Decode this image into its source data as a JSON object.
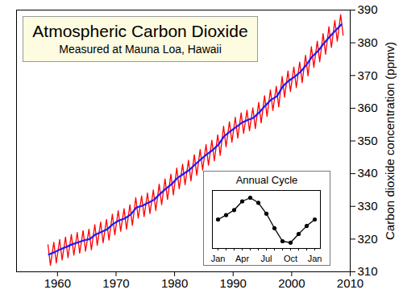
{
  "chart_data": [
    {
      "type": "line",
      "title": "Atmospheric Carbon Dioxide",
      "subtitle": "Measured at Mauna Loa, Hawaii",
      "y_label": "Carbon dioxide concentration (ppmv)",
      "xlim": [
        1953,
        2010
      ],
      "xticks": [
        1960,
        1970,
        1980,
        1990,
        2000,
        2010
      ],
      "ylim": [
        310,
        390
      ],
      "yticks": [
        310,
        320,
        330,
        340,
        350,
        360,
        370,
        380,
        390
      ],
      "grid": false,
      "series": [
        {
          "color": "#ff0000",
          "x": [
            1958.37,
            1958.79,
            1959.37,
            1959.79,
            1960.37,
            1960.79,
            1961.37,
            1961.79,
            1962.37,
            1962.79,
            1963.37,
            1963.79,
            1964.37,
            1964.79,
            1965.37,
            1965.79,
            1966.37,
            1966.79,
            1967.37,
            1967.79,
            1968.37,
            1968.79,
            1969.37,
            1969.79,
            1970.37,
            1970.79,
            1971.37,
            1971.79,
            1972.37,
            1972.79,
            1973.37,
            1973.79,
            1974.37,
            1974.79,
            1975.37,
            1975.79,
            1976.37,
            1976.79,
            1977.37,
            1977.79,
            1978.37,
            1978.79,
            1979.37,
            1979.79,
            1980.37,
            1980.79,
            1981.37,
            1981.79,
            1982.37,
            1982.79,
            1983.37,
            1983.79,
            1984.37,
            1984.79,
            1985.37,
            1985.79,
            1986.37,
            1986.79,
            1987.37,
            1987.79,
            1988.37,
            1988.79,
            1989.37,
            1989.79,
            1990.37,
            1990.79,
            1991.37,
            1991.79,
            1992.37,
            1992.79,
            1993.37,
            1993.79,
            1994.37,
            1994.79,
            1995.37,
            1995.79,
            1996.37,
            1996.79,
            1997.37,
            1997.79,
            1998.37,
            1998.79,
            1999.37,
            1999.79,
            2000.37,
            2000.79,
            2001.37,
            2001.79,
            2002.37,
            2002.79,
            2003.37,
            2003.79,
            2004.37,
            2004.79,
            2005.37,
            2005.79,
            2006.37,
            2006.79,
            2007.37,
            2007.79,
            2008.37,
            2008.79
          ],
          "values": [
            318.3,
            312.0,
            319.0,
            312.7,
            319.9,
            313.6,
            320.6,
            314.3,
            321.4,
            315.1,
            322.0,
            315.7,
            322.6,
            316.3,
            323.0,
            316.7,
            324.4,
            318.1,
            325.2,
            318.9,
            326.0,
            319.7,
            327.6,
            321.3,
            328.7,
            322.4,
            329.3,
            323.0,
            330.5,
            324.2,
            332.7,
            326.4,
            333.2,
            326.9,
            334.1,
            327.8,
            335.0,
            328.7,
            336.8,
            330.5,
            338.4,
            332.1,
            339.8,
            333.5,
            341.7,
            335.4,
            342.9,
            336.6,
            344.1,
            337.8,
            345.8,
            339.5,
            347.4,
            341.1,
            348.9,
            342.6,
            350.2,
            343.9,
            351.9,
            345.6,
            354.5,
            348.2,
            355.9,
            349.6,
            357.2,
            350.9,
            358.6,
            352.3,
            359.4,
            353.1,
            360.1,
            353.8,
            361.8,
            355.5,
            363.8,
            357.5,
            365.6,
            359.3,
            366.7,
            360.4,
            369.7,
            363.4,
            371.4,
            365.1,
            372.6,
            366.3,
            374.1,
            367.8,
            376.2,
            369.9,
            378.8,
            372.5,
            380.5,
            374.2,
            382.8,
            376.5,
            384.9,
            378.6,
            386.8,
            380.5,
            388.6,
            382.3
          ]
        },
        {
          "color": "#1a1aff",
          "x": [
            1958.5,
            1959.5,
            1960.5,
            1961.5,
            1962.5,
            1963.5,
            1964.5,
            1965.5,
            1966.5,
            1967.5,
            1968.5,
            1969.5,
            1970.5,
            1971.5,
            1972.5,
            1973.5,
            1974.5,
            1975.5,
            1976.5,
            1977.5,
            1978.5,
            1979.5,
            1980.5,
            1981.5,
            1982.5,
            1983.5,
            1984.5,
            1985.5,
            1986.5,
            1987.5,
            1988.5,
            1989.5,
            1990.5,
            1991.5,
            1992.5,
            1993.5,
            1994.5,
            1995.5,
            1996.5,
            1997.5,
            1998.5,
            1999.5,
            2000.5,
            2001.5,
            2002.5,
            2003.5,
            2004.5,
            2005.5,
            2006.5,
            2007.5,
            2008.5
          ],
          "values": [
            315.3,
            316.0,
            316.9,
            317.6,
            318.4,
            319.0,
            319.6,
            320.0,
            321.4,
            322.2,
            323.0,
            324.6,
            325.7,
            326.3,
            327.5,
            329.7,
            330.2,
            331.1,
            332.0,
            333.8,
            335.4,
            336.8,
            338.7,
            339.9,
            341.1,
            342.8,
            344.4,
            345.9,
            347.2,
            348.9,
            351.5,
            352.9,
            354.2,
            355.6,
            356.4,
            357.1,
            358.8,
            360.8,
            362.6,
            363.7,
            366.7,
            368.4,
            369.6,
            371.1,
            373.2,
            375.8,
            377.5,
            379.8,
            381.9,
            383.8,
            385.6
          ]
        }
      ]
    },
    {
      "type": "line",
      "title": "Annual Cycle",
      "categories": [
        "Jan",
        null,
        null,
        "Apr",
        null,
        null,
        "Jul",
        null,
        null,
        "Oct",
        null,
        null,
        "Jan"
      ],
      "values": [
        0.0,
        0.6,
        1.3,
        2.5,
        3.0,
        2.3,
        0.8,
        -1.2,
        -3.0,
        -3.2,
        -2.0,
        -0.9,
        0.0
      ],
      "color": "#000000",
      "marker": "circle",
      "ylim": [
        -4,
        4
      ],
      "tick_labels": "x"
    }
  ]
}
